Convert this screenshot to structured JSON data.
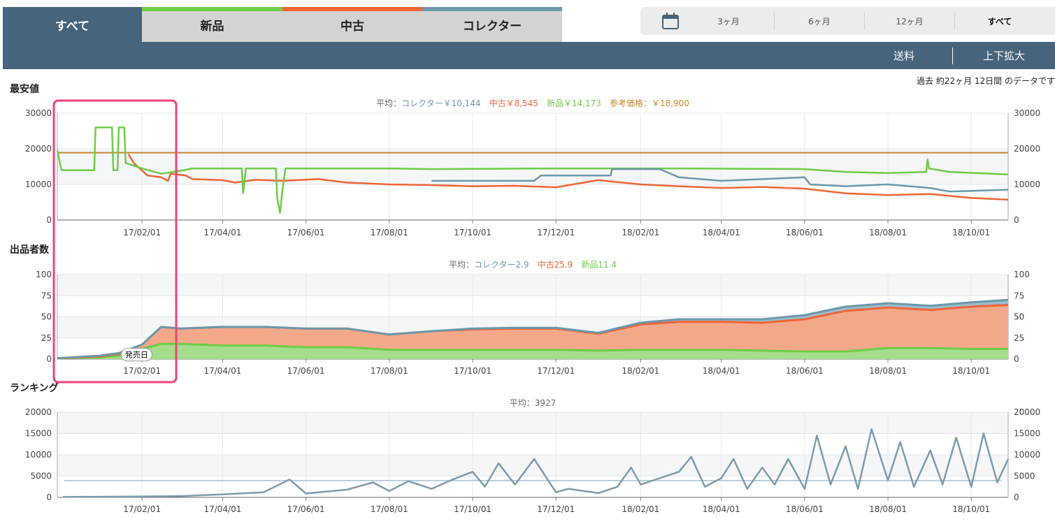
{
  "tabs": [
    {
      "label": "すべて",
      "color": "#46647c",
      "active": true
    },
    {
      "label": "新品",
      "color": "#6fcc46",
      "active": false
    },
    {
      "label": "中古",
      "color": "#ee6536",
      "active": false
    },
    {
      "label": "コレクター",
      "color": "#6c98aa",
      "active": false
    }
  ],
  "range": {
    "icon": "calendar-icon",
    "items": [
      "3ヶ月",
      "6ヶ月",
      "12ヶ月",
      "すべて"
    ],
    "selected": "すべて"
  },
  "toolbar": {
    "shipping_label": "送料",
    "zoom_label": "上下拡大"
  },
  "period_note": "過去 約22ヶ月 12日間 のデータです",
  "release_label": "発売日",
  "colors": {
    "collector": "#6c98aa",
    "used": "#ee6536",
    "new": "#6fcc46",
    "reference": "#c8862a",
    "highlight": "#f0437a",
    "ranking": "#7c9cae"
  },
  "chart_data": [
    {
      "type": "line",
      "title": "最安値",
      "summary": [
        {
          "text": "平均：",
          "color": "#666"
        },
        {
          "text": "コレクター￥10,144",
          "color": "#6c98aa"
        },
        {
          "text": "中古￥8,545",
          "color": "#ee6536"
        },
        {
          "text": "新品￥14,173",
          "color": "#6fcc46"
        },
        {
          "text": "参考価格：￥18,900",
          "color": "#c8862a"
        }
      ],
      "x_ticks": [
        "17/02/01",
        "17/04/01",
        "17/06/01",
        "17/08/01",
        "17/10/01",
        "17/12/01",
        "18/02/01",
        "18/04/01",
        "18/06/01",
        "18/08/01",
        "18/10/01"
      ],
      "x_range": [
        "2016-12-01",
        "2018-10-28"
      ],
      "y_ticks": [
        0,
        10000,
        20000,
        30000
      ],
      "ylim": [
        0,
        30000
      ],
      "series": [
        {
          "name": "参考価格",
          "color": "#c8862a",
          "points": [
            [
              "2016-12-01",
              18900
            ],
            [
              "2018-10-28",
              18900
            ]
          ]
        },
        {
          "name": "中古",
          "color": "#ee6536",
          "points": [
            [
              "2017-01-22",
              18500
            ],
            [
              "2017-01-26",
              16000
            ],
            [
              "2017-02-05",
              12500
            ],
            [
              "2017-02-15",
              12000
            ],
            [
              "2017-02-20",
              11000
            ],
            [
              "2017-02-22",
              13000
            ],
            [
              "2017-03-05",
              12500
            ],
            [
              "2017-03-10",
              11500
            ],
            [
              "2017-04-01",
              11200
            ],
            [
              "2017-04-10",
              10500
            ],
            [
              "2017-04-25",
              11300
            ],
            [
              "2017-05-15",
              11000
            ],
            [
              "2017-06-10",
              11500
            ],
            [
              "2017-07-01",
              10500
            ],
            [
              "2017-08-01",
              10000
            ],
            [
              "2017-09-01",
              9800
            ],
            [
              "2017-10-01",
              9500
            ],
            [
              "2017-11-01",
              9600
            ],
            [
              "2017-12-01",
              9200
            ],
            [
              "2018-01-01",
              11200
            ],
            [
              "2018-02-01",
              10000
            ],
            [
              "2018-03-01",
              9500
            ],
            [
              "2018-04-01",
              9000
            ],
            [
              "2018-05-01",
              9300
            ],
            [
              "2018-06-01",
              8800
            ],
            [
              "2018-07-01",
              7500
            ],
            [
              "2018-08-01",
              7000
            ],
            [
              "2018-09-01",
              7300
            ],
            [
              "2018-10-01",
              6200
            ],
            [
              "2018-10-28",
              5700
            ]
          ]
        },
        {
          "name": "新品",
          "color": "#6fcc46",
          "points": [
            [
              "2016-12-01",
              19500
            ],
            [
              "2016-12-04",
              14000
            ],
            [
              "2016-12-28",
              14000
            ],
            [
              "2016-12-29",
              26000
            ],
            [
              "2017-01-10",
              26000
            ],
            [
              "2017-01-11",
              14000
            ],
            [
              "2017-01-14",
              14000
            ],
            [
              "2017-01-15",
              26000
            ],
            [
              "2017-01-19",
              26000
            ],
            [
              "2017-01-20",
              16000
            ],
            [
              "2017-02-01",
              14500
            ],
            [
              "2017-02-15",
              13000
            ],
            [
              "2017-03-01",
              13800
            ],
            [
              "2017-03-10",
              14500
            ],
            [
              "2017-04-15",
              14500
            ],
            [
              "2017-04-16",
              7500
            ],
            [
              "2017-04-18",
              14500
            ],
            [
              "2017-05-10",
              14500
            ],
            [
              "2017-05-11",
              6000
            ],
            [
              "2017-05-13",
              2000
            ],
            [
              "2017-05-15",
              9000
            ],
            [
              "2017-05-17",
              14500
            ],
            [
              "2017-08-01",
              14500
            ],
            [
              "2017-09-01",
              14300
            ],
            [
              "2017-12-01",
              14500
            ],
            [
              "2018-03-01",
              14500
            ],
            [
              "2018-06-01",
              14300
            ],
            [
              "2018-07-01",
              13500
            ],
            [
              "2018-08-01",
              13200
            ],
            [
              "2018-08-29",
              13500
            ],
            [
              "2018-08-30",
              17000
            ],
            [
              "2018-08-31",
              14500
            ],
            [
              "2018-09-15",
              13500
            ],
            [
              "2018-10-28",
              12800
            ]
          ]
        },
        {
          "name": "コレクター",
          "color": "#6c98aa",
          "points": [
            [
              "2017-09-01",
              11000
            ],
            [
              "2017-11-15",
              11000
            ],
            [
              "2017-11-20",
              12500
            ],
            [
              "2017-12-15",
              12500
            ],
            [
              "2018-01-10",
              12500
            ],
            [
              "2018-01-11",
              14300
            ],
            [
              "2018-02-15",
              14300
            ],
            [
              "2018-03-01",
              12000
            ],
            [
              "2018-04-01",
              11000
            ],
            [
              "2018-05-01",
              11500
            ],
            [
              "2018-06-01",
              12000
            ],
            [
              "2018-06-05",
              10000
            ],
            [
              "2018-07-01",
              9500
            ],
            [
              "2018-08-01",
              10000
            ],
            [
              "2018-09-01",
              9000
            ],
            [
              "2018-09-15",
              8000
            ],
            [
              "2018-10-28",
              8500
            ]
          ]
        }
      ]
    },
    {
      "type": "area",
      "title": "出品者数",
      "summary": [
        {
          "text": "平均：",
          "color": "#666"
        },
        {
          "text": "コレクター2.9",
          "color": "#6c98aa"
        },
        {
          "text": "中古25.9",
          "color": "#ee6536"
        },
        {
          "text": "新品11.4",
          "color": "#6fcc46"
        }
      ],
      "x_ticks": [
        "17/02/01",
        "17/04/01",
        "17/06/01",
        "17/08/01",
        "17/10/01",
        "17/12/01",
        "18/02/01",
        "18/04/01",
        "18/06/01",
        "18/08/01",
        "18/10/01"
      ],
      "x_range": [
        "2016-12-01",
        "2018-10-28"
      ],
      "y_ticks": [
        0,
        25,
        50,
        75,
        100
      ],
      "ylim": [
        0,
        100
      ],
      "dates": [
        "2016-12-01",
        "2017-01-01",
        "2017-01-15",
        "2017-02-01",
        "2017-02-15",
        "2017-03-01",
        "2017-04-01",
        "2017-05-01",
        "2017-06-01",
        "2017-07-01",
        "2017-08-01",
        "2017-09-01",
        "2017-10-01",
        "2017-11-01",
        "2017-12-01",
        "2018-01-01",
        "2018-02-01",
        "2018-03-01",
        "2018-04-01",
        "2018-05-01",
        "2018-06-01",
        "2018-07-01",
        "2018-08-01",
        "2018-09-01",
        "2018-10-01",
        "2018-10-28"
      ],
      "series": [
        {
          "name": "コレクター",
          "color": "#6c98aa",
          "values": [
            0,
            1,
            1,
            0,
            0,
            0,
            0,
            0,
            0,
            0,
            0,
            0,
            1,
            1,
            1,
            1,
            2,
            3,
            3,
            4,
            5,
            5,
            5,
            5,
            5,
            6
          ]
        },
        {
          "name": "中古",
          "color": "#ee6536",
          "values": [
            0,
            1,
            2,
            5,
            20,
            18,
            22,
            22,
            22,
            22,
            18,
            22,
            24,
            25,
            25,
            20,
            30,
            33,
            33,
            33,
            38,
            48,
            48,
            45,
            50,
            52
          ]
        },
        {
          "name": "新品",
          "color": "#6fcc46",
          "values": [
            1,
            2,
            4,
            12,
            18,
            18,
            16,
            16,
            14,
            14,
            11,
            11,
            11,
            11,
            11,
            10,
            11,
            11,
            11,
            10,
            9,
            9,
            13,
            13,
            12,
            12
          ]
        }
      ]
    },
    {
      "type": "line",
      "title": "ランキング",
      "summary": [
        {
          "text": "平均：3927",
          "color": "#666"
        }
      ],
      "x_ticks": [
        "17/02/01",
        "17/04/01",
        "17/06/01",
        "17/08/01",
        "17/10/01",
        "17/12/01",
        "18/02/01",
        "18/04/01",
        "18/06/01",
        "18/08/01",
        "18/10/01"
      ],
      "x_range": [
        "2016-12-01",
        "2018-10-28"
      ],
      "y_ticks": [
        0,
        5000,
        10000,
        15000,
        20000
      ],
      "ylim": [
        0,
        20000
      ],
      "average": 3927,
      "series": [
        {
          "name": "ランキング",
          "color": "#7c9cae",
          "points": [
            [
              "2016-12-05",
              100
            ],
            [
              "2017-01-01",
              150
            ],
            [
              "2017-02-01",
              200
            ],
            [
              "2017-03-01",
              300
            ],
            [
              "2017-04-01",
              700
            ],
            [
              "2017-05-01",
              1200
            ],
            [
              "2017-05-20",
              4200
            ],
            [
              "2017-06-01",
              900
            ],
            [
              "2017-07-01",
              1800
            ],
            [
              "2017-07-20",
              3500
            ],
            [
              "2017-08-01",
              1500
            ],
            [
              "2017-08-15",
              3800
            ],
            [
              "2017-09-01",
              2000
            ],
            [
              "2017-09-15",
              4000
            ],
            [
              "2017-10-01",
              6000
            ],
            [
              "2017-10-10",
              2500
            ],
            [
              "2017-10-20",
              8000
            ],
            [
              "2017-11-01",
              3000
            ],
            [
              "2017-11-15",
              9000
            ],
            [
              "2017-12-01",
              1200
            ],
            [
              "2017-12-10",
              2000
            ],
            [
              "2018-01-01",
              1000
            ],
            [
              "2018-01-15",
              2500
            ],
            [
              "2018-01-25",
              7000
            ],
            [
              "2018-02-01",
              3000
            ],
            [
              "2018-02-15",
              4500
            ],
            [
              "2018-03-01",
              6000
            ],
            [
              "2018-03-10",
              9500
            ],
            [
              "2018-03-20",
              2500
            ],
            [
              "2018-04-01",
              4500
            ],
            [
              "2018-04-10",
              9000
            ],
            [
              "2018-04-20",
              2000
            ],
            [
              "2018-05-01",
              7000
            ],
            [
              "2018-05-10",
              3000
            ],
            [
              "2018-05-20",
              9000
            ],
            [
              "2018-06-01",
              2000
            ],
            [
              "2018-06-10",
              14500
            ],
            [
              "2018-06-20",
              3000
            ],
            [
              "2018-07-01",
              12000
            ],
            [
              "2018-07-10",
              2000
            ],
            [
              "2018-07-20",
              16000
            ],
            [
              "2018-08-01",
              4000
            ],
            [
              "2018-08-10",
              13000
            ],
            [
              "2018-08-20",
              2500
            ],
            [
              "2018-09-01",
              11000
            ],
            [
              "2018-09-10",
              3000
            ],
            [
              "2018-09-20",
              14000
            ],
            [
              "2018-10-01",
              2500
            ],
            [
              "2018-10-10",
              15000
            ],
            [
              "2018-10-20",
              3500
            ],
            [
              "2018-10-28",
              9000
            ]
          ]
        }
      ]
    }
  ]
}
